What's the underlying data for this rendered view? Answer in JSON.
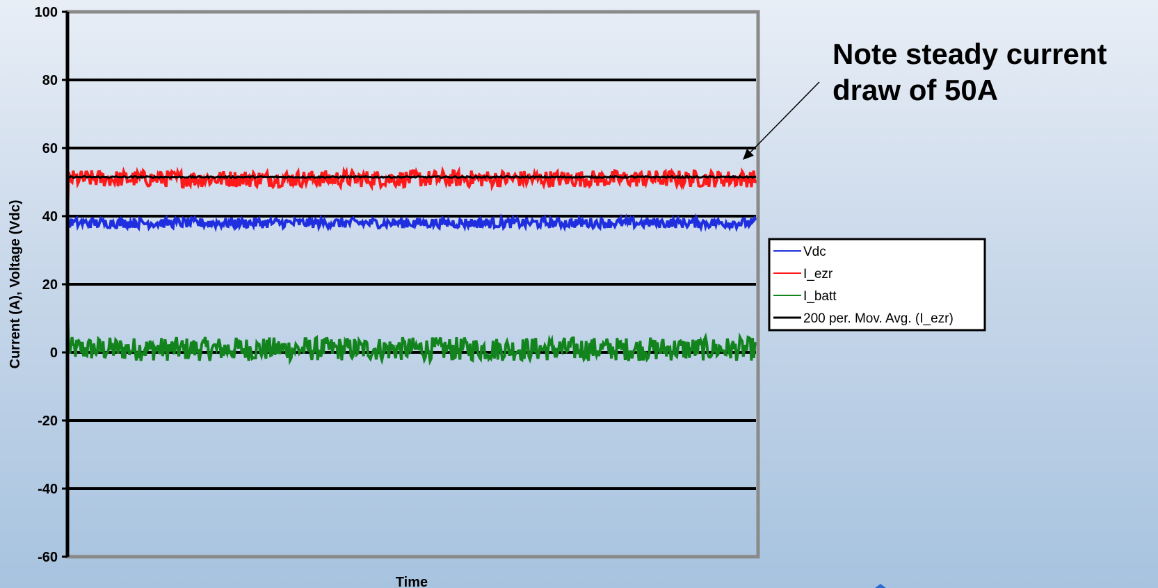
{
  "annotation": {
    "line1": "Note steady current",
    "line2": "draw of 50A"
  },
  "chart_data": {
    "type": "line",
    "title": "",
    "xlabel": "Time",
    "ylabel": "Current (A), Voltage (Vdc)",
    "ylim": [
      -60,
      100
    ],
    "yticks": [
      100,
      80,
      60,
      40,
      20,
      0,
      -20,
      -40,
      -60
    ],
    "grid": true,
    "legend_position": "right",
    "series": [
      {
        "name": "Vdc",
        "color": "#1f2fe0",
        "level": 38,
        "noise": 1.5,
        "start": 37
      },
      {
        "name": "I_ezr",
        "color": "#ff1a1a",
        "level": 51,
        "noise": 2.5,
        "start": 40
      },
      {
        "name": "I_batt",
        "color": "#13841d",
        "level": 1,
        "noise": 3.5,
        "start": 13
      },
      {
        "name": "200 per. Mov. Avg. (I_ezr)",
        "color": "#000000",
        "level": 51.5,
        "noise": 0.2,
        "start": 51.5
      }
    ]
  }
}
